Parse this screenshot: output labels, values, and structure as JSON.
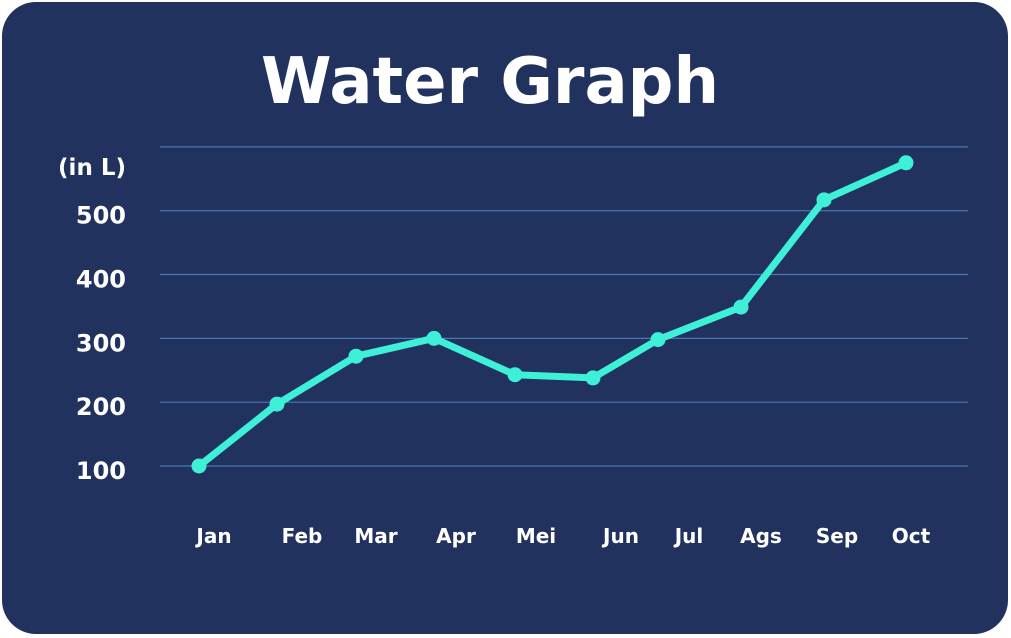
{
  "chart_data": {
    "type": "line",
    "title": "Water Graph",
    "ylabel": "(in L)",
    "categories": [
      "Jan",
      "Feb",
      "Mar",
      "Apr",
      "Mei",
      "Jun",
      "Jul",
      "Ags",
      "Sep",
      "Oct"
    ],
    "series": [
      {
        "values": [
          100,
          197,
          272,
          300,
          243,
          238,
          298,
          349,
          517,
          575
        ]
      }
    ],
    "yticks": [
      100,
      200,
      300,
      400,
      500
    ],
    "ylim": [
      100,
      600
    ],
    "grid": true,
    "legend": "none",
    "colors": {
      "background": "#22325f",
      "line": "#3ff0d8",
      "grid": "#4a78b0",
      "text": "#ffffff"
    }
  }
}
